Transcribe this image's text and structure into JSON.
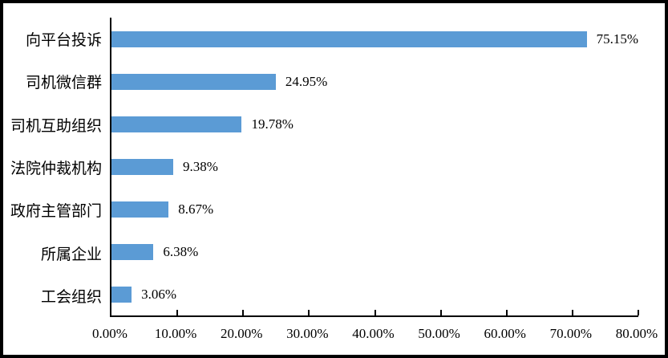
{
  "chart_data": {
    "type": "bar",
    "orientation": "horizontal",
    "title": "",
    "categories": [
      "向平台投诉",
      "司机微信群",
      "司机互助组织",
      "法院仲裁机构",
      "政府主管部门",
      "所属企业",
      "工会组织"
    ],
    "values": [
      75.15,
      24.95,
      19.78,
      9.38,
      8.67,
      6.38,
      3.06
    ],
    "value_labels": [
      "75.15%",
      "24.95%",
      "19.78%",
      "9.38%",
      "8.67%",
      "6.38%",
      "3.06%"
    ],
    "x_ticks": [
      "0.00%",
      "10.00%",
      "20.00%",
      "30.00%",
      "40.00%",
      "50.00%",
      "60.00%",
      "70.00%",
      "80.00%"
    ],
    "xlim": [
      0,
      80
    ],
    "xtick_step": 10,
    "grid": false,
    "legend": false,
    "bar_color": "#5B9BD5",
    "axis_color": "#000000",
    "background_color": "#FFFFFF",
    "border_color": "#000000"
  }
}
